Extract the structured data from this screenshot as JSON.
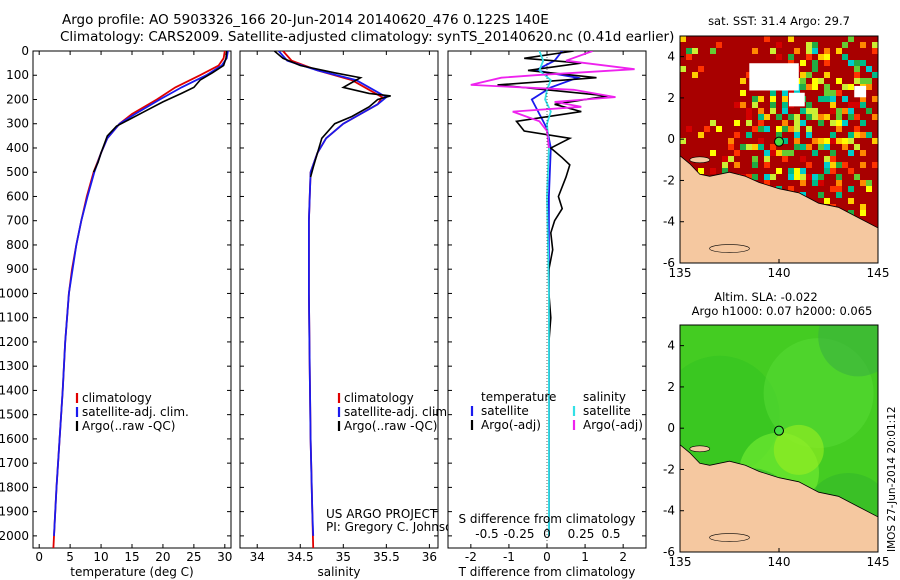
{
  "header": {
    "line1": "Argo profile: AO 5903326_166 20-Jun-2014 20140620_476 0.122S 140E",
    "line2": "Climatology: CARS2009. Satellite-adjusted climatology: synTS_20140620.nc (0.41d earlier)"
  },
  "colors": {
    "clim": "#e00000",
    "sat": "#1a1aee",
    "argo": "#000000",
    "sal_sat": "#33e0e6",
    "sal_argo": "#ee22ee",
    "land": "#f5c8a0"
  },
  "chart_data": [
    {
      "name": "temperature-profile",
      "type": "line",
      "xlabel": "temperature (deg C)",
      "xlim": [
        -1,
        31
      ],
      "ylim": [
        0,
        2050
      ],
      "xticks": [
        0,
        5,
        10,
        15,
        20,
        25,
        30
      ],
      "yticks": [
        0,
        100,
        200,
        300,
        400,
        500,
        600,
        700,
        800,
        900,
        1000,
        1100,
        1200,
        1300,
        1400,
        1500,
        1600,
        1700,
        1800,
        1900,
        2000
      ],
      "legend": [
        "climatology",
        "satellite-adj. clim.",
        "Argo(..raw -QC)"
      ],
      "series": [
        {
          "name": "climatology",
          "key": "clim",
          "points": [
            [
              30,
              0
            ],
            [
              29.8,
              30
            ],
            [
              29,
              60
            ],
            [
              26,
              100
            ],
            [
              22,
              150
            ],
            [
              19,
              200
            ],
            [
              15,
              260
            ],
            [
              13,
              300
            ],
            [
              11,
              360
            ],
            [
              10,
              420
            ],
            [
              8.8,
              500
            ],
            [
              7.7,
              600
            ],
            [
              6.8,
              700
            ],
            [
              6,
              800
            ],
            [
              5.3,
              900
            ],
            [
              4.8,
              1000
            ],
            [
              4.2,
              1200
            ],
            [
              3.8,
              1400
            ],
            [
              3.3,
              1600
            ],
            [
              2.8,
              1800
            ],
            [
              2.4,
              2000
            ],
            [
              2.3,
              2050
            ]
          ]
        },
        {
          "name": "satellite-adj. clim.",
          "key": "sat",
          "points": [
            [
              30.5,
              0
            ],
            [
              30.3,
              30
            ],
            [
              29.5,
              60
            ],
            [
              27,
              100
            ],
            [
              23,
              150
            ],
            [
              19.5,
              200
            ],
            [
              15.5,
              260
            ],
            [
              13,
              300
            ],
            [
              11,
              360
            ],
            [
              10,
              420
            ],
            [
              8.9,
              500
            ],
            [
              7.8,
              600
            ],
            [
              6.8,
              700
            ],
            [
              6,
              800
            ],
            [
              5.4,
              900
            ],
            [
              4.8,
              1000
            ],
            [
              4.2,
              1200
            ],
            [
              3.8,
              1400
            ],
            [
              3.3,
              1600
            ],
            [
              2.8,
              1800
            ],
            [
              2.4,
              2000
            ]
          ]
        },
        {
          "name": "Argo(..raw -QC)",
          "key": "argo",
          "points": [
            [
              30.3,
              0
            ],
            [
              30.2,
              30
            ],
            [
              29.8,
              60
            ],
            [
              28,
              90
            ],
            [
              26,
              120
            ],
            [
              25,
              150
            ],
            [
              23,
              175
            ],
            [
              20,
              210
            ],
            [
              17,
              250
            ],
            [
              14,
              290
            ],
            [
              12.5,
              310
            ],
            [
              11,
              350
            ],
            [
              10,
              420
            ],
            [
              9.5,
              460
            ],
            [
              8.8,
              500
            ]
          ]
        }
      ]
    },
    {
      "name": "salinity-profile",
      "type": "line",
      "xlabel": "salinity",
      "xlim": [
        33.8,
        36.1
      ],
      "xticks": [
        34,
        34.5,
        35,
        35.5,
        36
      ],
      "xticklabels": [
        "34",
        "34.5",
        "35",
        "35.5",
        "36"
      ],
      "legend": [
        "climatology",
        "satellite-adj. clim.",
        "Argo(..raw -QC)"
      ],
      "annotation": [
        "US ARGO PROJECT",
        "PI: Gregory C. Johnson"
      ],
      "series": [
        {
          "name": "climatology",
          "key": "clim",
          "points": [
            [
              34.3,
              0
            ],
            [
              34.4,
              40
            ],
            [
              34.7,
              80
            ],
            [
              35.1,
              120
            ],
            [
              35.3,
              160
            ],
            [
              35.45,
              190
            ],
            [
              35.4,
              220
            ],
            [
              35.2,
              260
            ],
            [
              35,
              300
            ],
            [
              34.8,
              360
            ],
            [
              34.7,
              420
            ],
            [
              34.62,
              500
            ],
            [
              34.6,
              700
            ],
            [
              34.6,
              1000
            ],
            [
              34.61,
              1300
            ],
            [
              34.62,
              1600
            ],
            [
              34.64,
              1900
            ],
            [
              34.65,
              2050
            ]
          ]
        },
        {
          "name": "satellite-adj. clim.",
          "key": "sat",
          "points": [
            [
              34.25,
              0
            ],
            [
              34.35,
              40
            ],
            [
              34.7,
              80
            ],
            [
              35.15,
              120
            ],
            [
              35.35,
              160
            ],
            [
              35.5,
              190
            ],
            [
              35.4,
              220
            ],
            [
              35.2,
              260
            ],
            [
              35,
              300
            ],
            [
              34.8,
              360
            ],
            [
              34.7,
              420
            ],
            [
              34.62,
              500
            ],
            [
              34.6,
              700
            ],
            [
              34.6,
              1000
            ],
            [
              34.61,
              1300
            ],
            [
              34.62,
              1600
            ],
            [
              34.64,
              1900
            ],
            [
              34.65,
              2000
            ]
          ]
        },
        {
          "name": "Argo(..raw -QC)",
          "key": "argo",
          "points": [
            [
              34.2,
              0
            ],
            [
              34.3,
              30
            ],
            [
              34.5,
              60
            ],
            [
              34.9,
              90
            ],
            [
              35.2,
              110
            ],
            [
              35.1,
              130
            ],
            [
              35,
              150
            ],
            [
              35.3,
              175
            ],
            [
              35.55,
              185
            ],
            [
              35.4,
              200
            ],
            [
              35.3,
              230
            ],
            [
              35.1,
              270
            ],
            [
              34.9,
              300
            ],
            [
              34.75,
              360
            ],
            [
              34.7,
              420
            ],
            [
              34.65,
              480
            ],
            [
              34.62,
              520
            ]
          ]
        }
      ]
    },
    {
      "name": "difference-profile",
      "type": "line",
      "xlabel": "T difference from climatology",
      "xlabel_top": "S difference from climatology",
      "xlim": [
        -2.6,
        2.6
      ],
      "xticks": [
        -2,
        -1,
        0,
        1,
        2
      ],
      "xticklabels": [
        "-2",
        "-1",
        "0",
        "1",
        "2"
      ],
      "top_ticklabels": [
        "-0.5",
        "-0.25",
        "0",
        "0.25",
        "0.5"
      ],
      "legend_headers": [
        "temperature",
        "salinity"
      ],
      "legend": [
        "satellite",
        "Argo(-adj)",
        "satellite",
        "Argo(-adj)"
      ],
      "series": [
        {
          "name": "T satellite",
          "key": "sat",
          "points": [
            [
              0.4,
              0
            ],
            [
              0.2,
              40
            ],
            [
              -0.3,
              80
            ],
            [
              0.8,
              110
            ],
            [
              0.1,
              150
            ],
            [
              -0.4,
              200
            ],
            [
              -0.2,
              260
            ],
            [
              0,
              320
            ],
            [
              0.1,
              400
            ],
            [
              0.05,
              600
            ],
            [
              0.05,
              1000
            ],
            [
              0.05,
              1500
            ],
            [
              0.05,
              2000
            ]
          ]
        },
        {
          "name": "T Argo(-adj)",
          "key": "argo",
          "points": [
            [
              0.7,
              0
            ],
            [
              -0.6,
              30
            ],
            [
              0.9,
              50
            ],
            [
              -0.5,
              80
            ],
            [
              1.3,
              110
            ],
            [
              -1.3,
              140
            ],
            [
              1.6,
              185
            ],
            [
              0.2,
              220
            ],
            [
              0.9,
              250
            ],
            [
              -0.8,
              290
            ],
            [
              -0.6,
              330
            ],
            [
              0.6,
              360
            ],
            [
              0.1,
              400
            ],
            [
              0.4,
              440
            ],
            [
              0.6,
              470
            ],
            [
              0.5,
              520
            ],
            [
              0.3,
              600
            ],
            [
              0.4,
              650
            ],
            [
              0.2,
              700
            ],
            [
              0.1,
              750
            ],
            [
              0.15,
              820
            ],
            [
              0.05,
              900
            ],
            [
              0.05,
              1000
            ],
            [
              0.1,
              1100
            ],
            [
              0.05,
              1200
            ],
            [
              0.05,
              1400
            ],
            [
              0.05,
              1600
            ],
            [
              0.05,
              1800
            ],
            [
              0.05,
              2000
            ]
          ]
        },
        {
          "name": "S satellite",
          "key": "sal_sat",
          "points": [
            [
              -0.2,
              0
            ],
            [
              -0.1,
              40
            ],
            [
              -0.2,
              80
            ],
            [
              0.1,
              120
            ],
            [
              0,
              160
            ],
            [
              -0.05,
              200
            ],
            [
              0.1,
              250
            ],
            [
              0,
              300
            ],
            [
              0.05,
              400
            ],
            [
              0,
              600
            ],
            [
              0.05,
              1000
            ],
            [
              0.05,
              1500
            ],
            [
              0.05,
              2000
            ]
          ]
        },
        {
          "name": "S Argo(-adj)",
          "key": "sal_argo",
          "points": [
            [
              1.2,
              0
            ],
            [
              0.5,
              40
            ],
            [
              2.3,
              75
            ],
            [
              -0.3,
              100
            ],
            [
              -1.2,
              110
            ],
            [
              -2.0,
              140
            ],
            [
              0.7,
              160
            ],
            [
              1.8,
              190
            ],
            [
              0.2,
              210
            ],
            [
              0.9,
              230
            ],
            [
              -0.9,
              250
            ],
            [
              -0.2,
              290
            ],
            [
              0,
              330
            ],
            [
              0.05,
              400
            ]
          ]
        }
      ]
    },
    {
      "name": "sst-map",
      "type": "heatmap",
      "title": "sat. SST: 31.4 Argo: 29.7",
      "xlim": [
        135,
        145
      ],
      "ylim": [
        -6,
        5
      ],
      "xticks": [
        135,
        140,
        145
      ],
      "yticks": [
        -6,
        -4,
        -2,
        0,
        2,
        4
      ],
      "argo_position": [
        140,
        -0.12
      ]
    },
    {
      "name": "sla-map",
      "type": "heatmap",
      "title": [
        "Altim. SLA: -0.022",
        "Argo h1000: 0.07 h2000: 0.065"
      ],
      "xlim": [
        135,
        145
      ],
      "ylim": [
        -6,
        5
      ],
      "xticks": [
        135,
        140,
        145
      ],
      "yticks": [
        -6,
        -4,
        -2,
        0,
        2,
        4
      ],
      "argo_position": [
        140,
        -0.12
      ],
      "credit": "IMOS 27-Jun-2014 20:01:12"
    }
  ]
}
